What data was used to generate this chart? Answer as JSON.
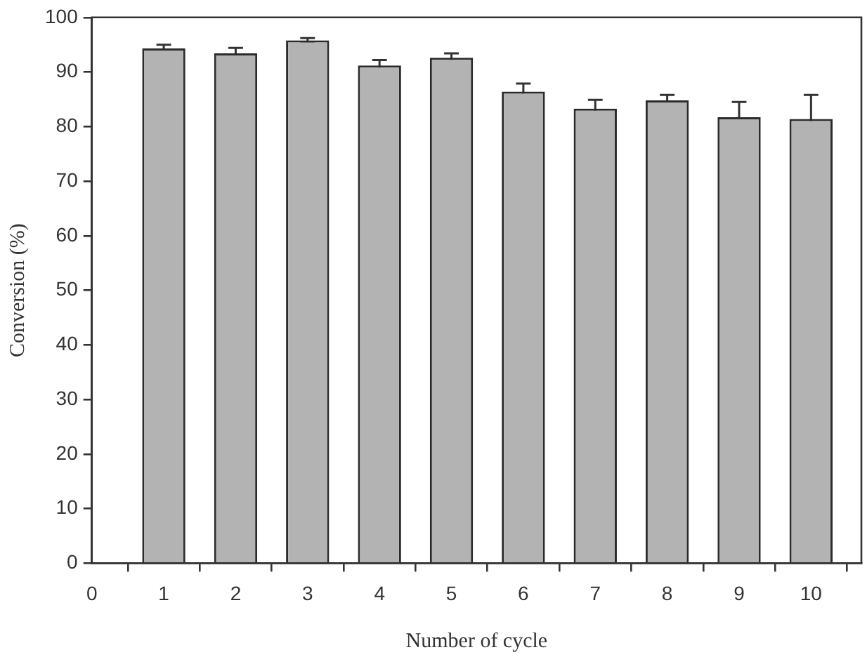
{
  "chart_data": {
    "type": "bar",
    "xlabel": "Number of cycle",
    "ylabel": "Conversion (%)",
    "x": [
      1,
      2,
      3,
      4,
      5,
      6,
      7,
      8,
      9,
      10
    ],
    "values": [
      94.3,
      93.4,
      95.8,
      91.2,
      92.6,
      86.4,
      83.3,
      84.8,
      81.7,
      81.4
    ],
    "errors": [
      0.7,
      1.0,
      0.4,
      1.0,
      0.8,
      1.5,
      1.6,
      1.0,
      2.8,
      4.4
    ],
    "color": "#b3b3b3",
    "xlim": [
      0,
      10.7
    ],
    "ylim": [
      0,
      100
    ],
    "xticks": [
      0,
      1,
      2,
      3,
      4,
      5,
      6,
      7,
      8,
      9,
      10
    ],
    "yticks": [
      0,
      10,
      20,
      30,
      40,
      50,
      60,
      70,
      80,
      90,
      100
    ]
  }
}
